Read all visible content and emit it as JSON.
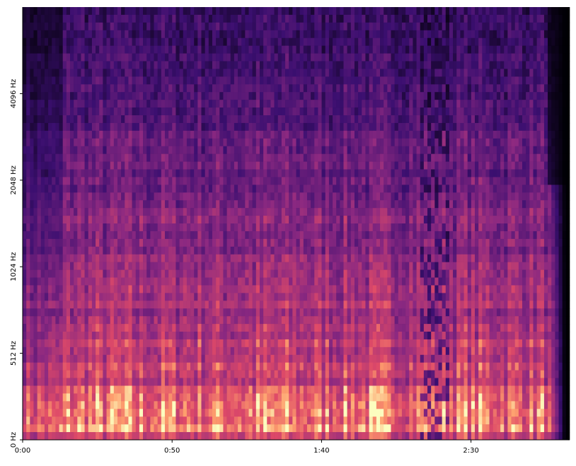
{
  "chart_data": {
    "type": "spectrogram",
    "xlim": [
      0,
      183
    ],
    "xticks": [
      {
        "value": 0,
        "label": "0:00"
      },
      {
        "value": 50,
        "label": "0:50"
      },
      {
        "value": 100,
        "label": "1:40"
      },
      {
        "value": 150,
        "label": "2:30"
      }
    ],
    "ylim": [
      0,
      8192
    ],
    "yscale": "symlog",
    "linthresh": 512,
    "yticks": [
      {
        "value": 0,
        "label": "0 Hz"
      },
      {
        "value": 512,
        "label": "512 Hz"
      },
      {
        "value": 1024,
        "label": "1024 Hz"
      },
      {
        "value": 2048,
        "label": "2048 Hz"
      },
      {
        "value": 4096,
        "label": "4096 Hz"
      }
    ]
  }
}
